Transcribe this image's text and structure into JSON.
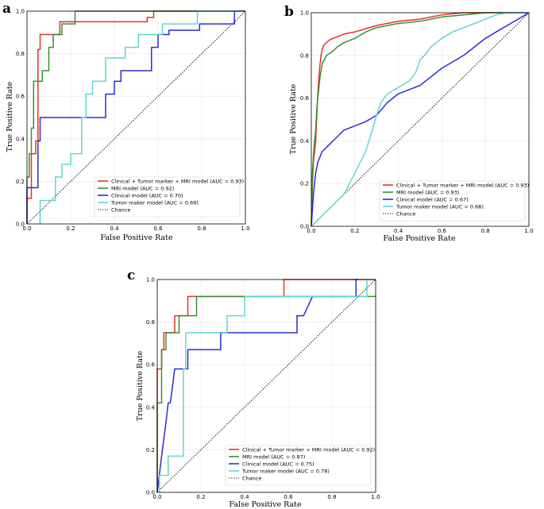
{
  "chart_data": [
    {
      "panel": "a",
      "type": "line",
      "xlabel": "False Positive Rate",
      "ylabel": "True Positive Rate",
      "xlim": [
        0,
        1
      ],
      "ylim": [
        0,
        1
      ],
      "x_ticks": [
        "0.0",
        "0.2",
        "0.4",
        "0.6",
        "0.8",
        "1.0"
      ],
      "y_ticks": [
        "0.0",
        "0.2",
        "0.4",
        "0.6",
        "0.8",
        "1.0"
      ],
      "grid": true,
      "legend_position": "bottom-right",
      "series": [
        {
          "name": "Clinical + Tumor marker + MRI model (AUC = 0.93)",
          "color": "#e8302a",
          "x": [
            0,
            0,
            0.02,
            0.02,
            0.04,
            0.04,
            0.05,
            0.05,
            0.06,
            0.06,
            0.15,
            0.15,
            0.55,
            0.55,
            0.58,
            0.58,
            1
          ],
          "y": [
            0,
            0.12,
            0.12,
            0.33,
            0.33,
            0.39,
            0.39,
            0.82,
            0.82,
            0.89,
            0.89,
            0.95,
            0.95,
            0.97,
            0.97,
            1,
            1
          ]
        },
        {
          "name": "MRI model (AUC = 0.92)",
          "color": "#3a8f2e",
          "x": [
            0,
            0,
            0.01,
            0.01,
            0.02,
            0.02,
            0.03,
            0.03,
            0.04,
            0.04,
            0.07,
            0.07,
            0.1,
            0.1,
            0.12,
            0.12,
            0.16,
            0.16,
            0.22,
            0.22,
            0.54,
            0.54,
            1
          ],
          "y": [
            0,
            0.22,
            0.22,
            0.33,
            0.33,
            0.45,
            0.45,
            0.67,
            0.67,
            0.67,
            0.67,
            0.72,
            0.72,
            0.83,
            0.83,
            0.89,
            0.89,
            0.94,
            0.94,
            1,
            1,
            1,
            1
          ]
        },
        {
          "name": "Clinical model (AUC = 0.70)",
          "color": "#2b2bd4",
          "x": [
            0,
            0,
            0.05,
            0.05,
            0.06,
            0.06,
            0.36,
            0.36,
            0.4,
            0.4,
            0.43,
            0.43,
            0.57,
            0.57,
            0.6,
            0.6,
            0.65,
            0.65,
            0.79,
            0.79,
            0.95,
            0.95,
            1
          ],
          "y": [
            0,
            0.17,
            0.17,
            0.39,
            0.39,
            0.5,
            0.5,
            0.61,
            0.61,
            0.67,
            0.67,
            0.72,
            0.72,
            0.83,
            0.83,
            0.89,
            0.89,
            0.91,
            0.91,
            0.94,
            0.94,
            1,
            1
          ]
        },
        {
          "name": "Tumor maker model (AUC = 0.69)",
          "color": "#5fd6d0",
          "x": [
            0.06,
            0.06,
            0.13,
            0.13,
            0.16,
            0.16,
            0.2,
            0.2,
            0.25,
            0.25,
            0.27,
            0.27,
            0.3,
            0.3,
            0.36,
            0.36,
            0.45,
            0.45,
            0.51,
            0.51,
            0.62,
            0.62,
            0.78,
            0.78,
            1
          ],
          "y": [
            0,
            0.11,
            0.11,
            0.22,
            0.22,
            0.28,
            0.28,
            0.33,
            0.33,
            0.5,
            0.5,
            0.61,
            0.61,
            0.67,
            0.67,
            0.78,
            0.78,
            0.83,
            0.83,
            0.89,
            0.89,
            0.94,
            0.94,
            1,
            1
          ]
        }
      ],
      "chance": {
        "name": "Chance",
        "x": [
          0,
          1
        ],
        "y": [
          0,
          1
        ]
      }
    },
    {
      "panel": "b",
      "type": "line",
      "xlabel": "False Positive Rate",
      "ylabel": "True Positive Rate",
      "xlim": [
        0,
        1
      ],
      "ylim": [
        0,
        1
      ],
      "x_ticks": [
        "0.0",
        "0.2",
        "0.4",
        "0.6",
        "0.8",
        "1.0"
      ],
      "y_ticks": [
        "0.0",
        "0.2",
        "0.4",
        "0.6",
        "0.8",
        "1.0"
      ],
      "grid": true,
      "legend_position": "bottom-right",
      "series": [
        {
          "name": "Clinical + Tumor marker + MRI model (AUC = 0.93)",
          "color": "#e8302a",
          "x": [
            0,
            0.005,
            0.01,
            0.015,
            0.02,
            0.025,
            0.03,
            0.035,
            0.04,
            0.045,
            0.05,
            0.06,
            0.08,
            0.1,
            0.15,
            0.2,
            0.3,
            0.4,
            0.5,
            0.6,
            0.7,
            1
          ],
          "y": [
            0,
            0.2,
            0.3,
            0.35,
            0.4,
            0.52,
            0.62,
            0.7,
            0.76,
            0.8,
            0.83,
            0.85,
            0.87,
            0.88,
            0.9,
            0.91,
            0.94,
            0.96,
            0.97,
            0.99,
            1,
            1
          ]
        },
        {
          "name": "MRI model (AUC = 0.93)",
          "color": "#3a8f2e",
          "x": [
            0,
            0.005,
            0.01,
            0.015,
            0.02,
            0.025,
            0.03,
            0.04,
            0.05,
            0.07,
            0.1,
            0.12,
            0.15,
            0.2,
            0.25,
            0.3,
            0.4,
            0.5,
            0.6,
            0.7,
            0.8,
            1
          ],
          "y": [
            0,
            0.25,
            0.33,
            0.4,
            0.45,
            0.55,
            0.6,
            0.7,
            0.76,
            0.8,
            0.82,
            0.84,
            0.86,
            0.88,
            0.91,
            0.93,
            0.95,
            0.96,
            0.98,
            0.99,
            1,
            1
          ]
        },
        {
          "name": "Clinical model (AUC = 0.67)",
          "color": "#2b2bd4",
          "x": [
            0,
            0.01,
            0.02,
            0.03,
            0.05,
            0.08,
            0.1,
            0.12,
            0.15,
            0.2,
            0.25,
            0.3,
            0.35,
            0.4,
            0.45,
            0.5,
            0.55,
            0.6,
            0.65,
            0.7,
            0.75,
            0.8,
            0.85,
            0.9,
            0.95,
            1
          ],
          "y": [
            0,
            0.15,
            0.25,
            0.3,
            0.35,
            0.38,
            0.4,
            0.42,
            0.45,
            0.47,
            0.49,
            0.52,
            0.58,
            0.62,
            0.64,
            0.66,
            0.7,
            0.74,
            0.77,
            0.8,
            0.84,
            0.88,
            0.91,
            0.94,
            0.97,
            1
          ]
        },
        {
          "name": "Tumor maker model (AUC = 0.68)",
          "color": "#5fd6d0",
          "x": [
            0,
            0.05,
            0.1,
            0.15,
            0.2,
            0.25,
            0.28,
            0.3,
            0.32,
            0.35,
            0.4,
            0.45,
            0.48,
            0.5,
            0.52,
            0.55,
            0.6,
            0.65,
            0.7,
            0.75,
            0.8,
            0.85,
            0.9,
            1
          ],
          "y": [
            0,
            0.05,
            0.1,
            0.15,
            0.25,
            0.35,
            0.45,
            0.52,
            0.58,
            0.62,
            0.65,
            0.68,
            0.72,
            0.78,
            0.8,
            0.84,
            0.88,
            0.91,
            0.93,
            0.95,
            0.97,
            0.99,
            1,
            1
          ]
        }
      ],
      "chance": {
        "name": "Chance",
        "x": [
          0,
          1
        ],
        "y": [
          0,
          1
        ]
      }
    },
    {
      "panel": "c",
      "type": "line",
      "xlabel": "False Positive Rate",
      "ylabel": "True Positive Rate",
      "xlim": [
        0,
        1
      ],
      "ylim": [
        0,
        1
      ],
      "x_ticks": [
        "0.0",
        "0.2",
        "0.4",
        "0.6",
        "0.8",
        "1.0"
      ],
      "y_ticks": [
        "0.0",
        "0.2",
        "0.4",
        "0.6",
        "0.8",
        "1.0"
      ],
      "grid": true,
      "legend_position": "bottom-right",
      "series": [
        {
          "name": "Clinical + Tumor marker + MRI model (AUC = 0.92)",
          "color": "#e8302a",
          "x": [
            0,
            0,
            0.02,
            0.02,
            0.03,
            0.03,
            0.08,
            0.08,
            0.1,
            0.1,
            0.14,
            0.14,
            0.58,
            0.58,
            1
          ],
          "y": [
            0,
            0.58,
            0.58,
            0.67,
            0.67,
            0.75,
            0.75,
            0.83,
            0.83,
            0.83,
            0.83,
            0.92,
            0.92,
            1,
            1
          ]
        },
        {
          "name": "MRI model (AUC = 0.87)",
          "color": "#3a8f2e",
          "x": [
            0,
            0,
            0.02,
            0.02,
            0.04,
            0.04,
            0.1,
            0.1,
            0.18,
            0.18,
            0.43,
            0.43,
            1
          ],
          "y": [
            0,
            0.42,
            0.42,
            0.67,
            0.67,
            0.75,
            0.75,
            0.83,
            0.83,
            0.92,
            0.92,
            0.92,
            0.92
          ]
        },
        {
          "name": "Clinical model (AUC = 0.75)",
          "color": "#2b2bd4",
          "x": [
            0,
            0.02,
            0.03,
            0.04,
            0.05,
            0.06,
            0.07,
            0.08,
            0.1,
            0.1,
            0.14,
            0.14,
            0.2,
            0.2,
            0.24,
            0.24,
            0.29,
            0.29,
            0.64,
            0.64,
            0.67,
            0.67,
            0.71,
            0.71,
            0.74,
            0.91,
            0.91,
            0.92
          ],
          "y": [
            0,
            0.17,
            0.25,
            0.33,
            0.42,
            0.42,
            0.5,
            0.58,
            0.58,
            0.58,
            0.58,
            0.67,
            0.67,
            0.67,
            0.67,
            0.67,
            0.67,
            0.75,
            0.75,
            0.83,
            0.83,
            0.83,
            0.92,
            0.92,
            0.92,
            0.92,
            1,
            1
          ]
        },
        {
          "name": "Tumor maker model (AUC = 0.78)",
          "color": "#5fd6d0",
          "x": [
            0.01,
            0.01,
            0.05,
            0.05,
            0.12,
            0.12,
            0.13,
            0.13,
            0.32,
            0.32,
            0.4,
            0.4,
            0.43,
            0.43,
            0.62,
            0.62,
            0.96,
            0.96,
            1
          ],
          "y": [
            0,
            0.08,
            0.08,
            0.17,
            0.17,
            0.58,
            0.58,
            0.75,
            0.75,
            0.83,
            0.83,
            0.92,
            0.92,
            0.92,
            0.92,
            0.92,
            0.92,
            1,
            1
          ]
        }
      ],
      "chance": {
        "name": "Chance",
        "x": [
          0,
          1
        ],
        "y": [
          0,
          1
        ]
      }
    }
  ]
}
